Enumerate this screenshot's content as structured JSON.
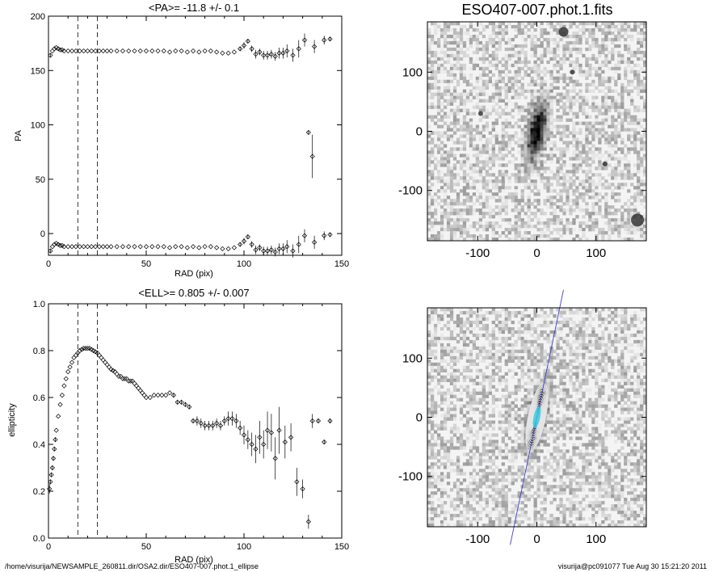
{
  "page": {
    "footer_left": "/home/visurija/NEWSAMPLE_260811.dir/OSA2.dir/ESO407-007.phot.1_ellipse",
    "footer_right": "visurija@pc091077  Tue Aug 30 15:21:20 2011"
  },
  "chart_data": [
    {
      "id": "pa",
      "type": "scatter",
      "title": "<PA>= -11.8 +/-   0.1",
      "xlabel": "RAD (pix)",
      "ylabel": "PA",
      "xlim": [
        0,
        150
      ],
      "ylim": [
        -20,
        200
      ],
      "xticks": [
        0,
        50,
        100,
        150
      ],
      "yticks": [
        0,
        50,
        100,
        150,
        200
      ],
      "vlines": [
        15,
        25
      ],
      "grid": false,
      "series": [
        {
          "x": [
            1,
            2,
            3,
            4,
            5,
            6,
            7,
            8,
            10,
            12,
            14,
            16,
            18,
            20,
            22,
            24,
            26,
            28,
            30,
            32,
            35,
            38,
            41,
            44,
            47,
            50,
            53,
            56,
            59,
            62,
            65,
            68,
            71,
            74,
            77,
            80,
            83,
            86,
            89,
            92,
            95,
            98,
            100,
            102,
            104,
            106,
            108,
            110,
            112,
            114,
            116,
            118,
            120,
            122,
            125,
            128,
            131,
            136,
            141,
            144
          ],
          "y": [
            164,
            168,
            170,
            171,
            170,
            169,
            169,
            168,
            168,
            168,
            168,
            168,
            168,
            168,
            168,
            168,
            168,
            168,
            168,
            168,
            168,
            168,
            168,
            168,
            168,
            168,
            168,
            168,
            168,
            167,
            168,
            168,
            167,
            168,
            167,
            168,
            168,
            167,
            166,
            166,
            167,
            170,
            173,
            177,
            170,
            165,
            167,
            164,
            164,
            165,
            163,
            166,
            166,
            168,
            164,
            170,
            178,
            172,
            178,
            179
          ],
          "yerr": [
            2,
            1,
            1,
            1,
            0.5,
            0.5,
            0.5,
            0.5,
            0.3,
            0.3,
            0.3,
            0.3,
            0.3,
            0.3,
            0.3,
            0.3,
            0.3,
            0.3,
            0.3,
            0.3,
            0.3,
            0.3,
            0.3,
            0.3,
            0.3,
            0.3,
            0.3,
            0.3,
            0.3,
            0.3,
            0.4,
            0.4,
            0.5,
            0.5,
            0.5,
            0.6,
            0.6,
            0.6,
            0.8,
            0.8,
            1,
            2,
            3,
            2,
            3,
            4,
            3,
            4,
            4,
            4,
            4,
            5,
            5,
            6,
            6,
            8,
            6,
            6,
            4,
            2
          ]
        },
        {
          "x": [
            1,
            2,
            3,
            4,
            5,
            6,
            7,
            8,
            10,
            12,
            14,
            16,
            18,
            20,
            22,
            24,
            26,
            28,
            30,
            32,
            35,
            38,
            41,
            44,
            47,
            50,
            53,
            56,
            59,
            62,
            65,
            68,
            71,
            74,
            77,
            80,
            83,
            86,
            89,
            92,
            95,
            98,
            100,
            102,
            104,
            106,
            108,
            110,
            112,
            114,
            116,
            118,
            120,
            122,
            125,
            128,
            131,
            136,
            141,
            144
          ],
          "y": [
            -16,
            -12,
            -10,
            -9,
            -10,
            -11,
            -11,
            -12,
            -12,
            -12,
            -12,
            -12,
            -12,
            -12,
            -12,
            -12,
            -12,
            -12,
            -12,
            -12,
            -12,
            -12,
            -12,
            -12,
            -12,
            -12,
            -12,
            -12,
            -12,
            -13,
            -12,
            -12,
            -13,
            -12,
            -13,
            -12,
            -12,
            -13,
            -14,
            -14,
            -13,
            -10,
            -7,
            -3,
            -10,
            -15,
            -13,
            -16,
            -16,
            -15,
            -17,
            -14,
            -14,
            -12,
            -16,
            -10,
            -2,
            -8,
            -2,
            -1
          ],
          "yerr": [
            2,
            1,
            1,
            1,
            0.5,
            0.5,
            0.5,
            0.5,
            0.3,
            0.3,
            0.3,
            0.3,
            0.3,
            0.3,
            0.3,
            0.3,
            0.3,
            0.3,
            0.3,
            0.3,
            0.3,
            0.3,
            0.3,
            0.3,
            0.3,
            0.3,
            0.3,
            0.3,
            0.3,
            0.3,
            0.4,
            0.4,
            0.5,
            0.5,
            0.5,
            0.6,
            0.6,
            0.6,
            0.8,
            0.8,
            1,
            2,
            3,
            2,
            3,
            4,
            3,
            4,
            4,
            4,
            4,
            5,
            5,
            6,
            6,
            8,
            6,
            6,
            4,
            2
          ]
        },
        {
          "x": [
            133,
            135
          ],
          "y": [
            93,
            71
          ],
          "yerr": [
            2,
            20
          ]
        }
      ]
    },
    {
      "id": "ell",
      "type": "scatter",
      "title": "<ELL>= 0.805 +/-  0.007",
      "xlabel": "RAD (pix)",
      "ylabel": "ellipticity",
      "xlim": [
        0,
        150
      ],
      "ylim": [
        0.0,
        1.0
      ],
      "xticks": [
        0,
        50,
        100,
        150
      ],
      "yticks": [
        0.0,
        0.2,
        0.4,
        0.6,
        0.8,
        1.0
      ],
      "vlines": [
        15,
        25
      ],
      "grid": false,
      "series": [
        {
          "x": [
            0.5,
            1,
            1.5,
            2,
            2.5,
            3,
            3.5,
            4,
            5,
            6,
            7,
            8,
            9,
            10,
            11,
            12,
            13,
            14,
            15,
            16,
            17,
            18,
            19,
            20,
            21,
            22,
            23,
            24,
            25,
            26,
            27,
            28,
            29,
            30,
            31,
            32,
            33,
            34,
            35,
            36,
            37,
            38,
            39,
            40,
            41,
            42,
            43,
            44,
            45,
            46,
            47,
            48,
            49,
            50,
            52,
            54,
            56,
            58,
            60,
            62,
            64,
            66,
            68,
            70,
            72,
            74,
            76,
            78,
            80,
            82,
            84,
            86,
            88,
            90,
            92,
            94,
            96,
            98,
            100,
            102,
            104,
            106,
            108,
            110,
            112,
            114,
            116,
            118,
            121,
            124,
            127,
            130,
            133,
            135,
            138,
            141,
            144
          ],
          "y": [
            0.21,
            0.24,
            0.27,
            0.3,
            0.34,
            0.38,
            0.42,
            0.46,
            0.52,
            0.57,
            0.61,
            0.65,
            0.68,
            0.71,
            0.73,
            0.75,
            0.77,
            0.78,
            0.79,
            0.8,
            0.805,
            0.81,
            0.81,
            0.81,
            0.81,
            0.805,
            0.8,
            0.795,
            0.79,
            0.78,
            0.77,
            0.76,
            0.75,
            0.74,
            0.73,
            0.72,
            0.715,
            0.71,
            0.7,
            0.69,
            0.69,
            0.68,
            0.68,
            0.68,
            0.67,
            0.67,
            0.67,
            0.66,
            0.65,
            0.64,
            0.63,
            0.62,
            0.61,
            0.6,
            0.6,
            0.61,
            0.61,
            0.61,
            0.61,
            0.62,
            0.61,
            0.58,
            0.58,
            0.57,
            0.56,
            0.5,
            0.5,
            0.49,
            0.48,
            0.48,
            0.48,
            0.49,
            0.48,
            0.5,
            0.51,
            0.51,
            0.5,
            0.47,
            0.44,
            0.42,
            0.4,
            0.38,
            0.43,
            0.4,
            0.46,
            0.45,
            0.34,
            0.46,
            0.41,
            0.43,
            0.24,
            0.21,
            0.07,
            0.5,
            0.5,
            0.41,
            0.5
          ],
          "yerr": [
            0.02,
            0.01,
            0.01,
            0.01,
            0.01,
            0.01,
            0.01,
            0.005,
            0.005,
            0.005,
            0.005,
            0.005,
            0.005,
            0.003,
            0.003,
            0.003,
            0.003,
            0.003,
            0.003,
            0.003,
            0.003,
            0.003,
            0.003,
            0.003,
            0.003,
            0.003,
            0.003,
            0.003,
            0.003,
            0.003,
            0.003,
            0.003,
            0.003,
            0.003,
            0.003,
            0.003,
            0.003,
            0.003,
            0.003,
            0.003,
            0.003,
            0.003,
            0.003,
            0.003,
            0.003,
            0.003,
            0.003,
            0.003,
            0.003,
            0.003,
            0.003,
            0.003,
            0.003,
            0.005,
            0.005,
            0.005,
            0.005,
            0.005,
            0.005,
            0.005,
            0.01,
            0.01,
            0.01,
            0.01,
            0.01,
            0.01,
            0.02,
            0.02,
            0.02,
            0.02,
            0.02,
            0.02,
            0.02,
            0.02,
            0.03,
            0.03,
            0.03,
            0.03,
            0.04,
            0.04,
            0.05,
            0.06,
            0.07,
            0.06,
            0.08,
            0.08,
            0.09,
            0.1,
            0.07,
            0.06,
            0.06,
            0.04,
            0.03,
            0.03,
            0.01,
            0.01,
            0.01
          ]
        }
      ]
    },
    {
      "id": "image",
      "type": "heatmap",
      "title": "ESO407-007.phot.1.fits",
      "xlim": [
        -185,
        185
      ],
      "ylim": [
        -185,
        185
      ],
      "xticks": [
        -100,
        0,
        100
      ],
      "yticks": [
        -100,
        0,
        100
      ],
      "colormap": "grayscale",
      "source_object": {
        "pa_deg": -11.8,
        "ellipticity": 0.8,
        "semi_major": 55
      }
    },
    {
      "id": "ellipse-overlay",
      "type": "heatmap",
      "title": "",
      "xlim": [
        -185,
        185
      ],
      "ylim": [
        -185,
        185
      ],
      "xticks": [
        -100,
        0,
        100
      ],
      "yticks": [
        -100,
        0,
        100
      ],
      "colormap": "grayscale",
      "overlay": {
        "isophote_color": "#e6e6e6",
        "major_axis_color": "#4040cc",
        "core_color": "#39c9e0",
        "pa_deg": -11.8,
        "ellipticity": 0.8,
        "isophote_semi_major": [
          6,
          10,
          14,
          18,
          22,
          26,
          30,
          34,
          38,
          42,
          46,
          50,
          54,
          58
        ]
      }
    }
  ]
}
